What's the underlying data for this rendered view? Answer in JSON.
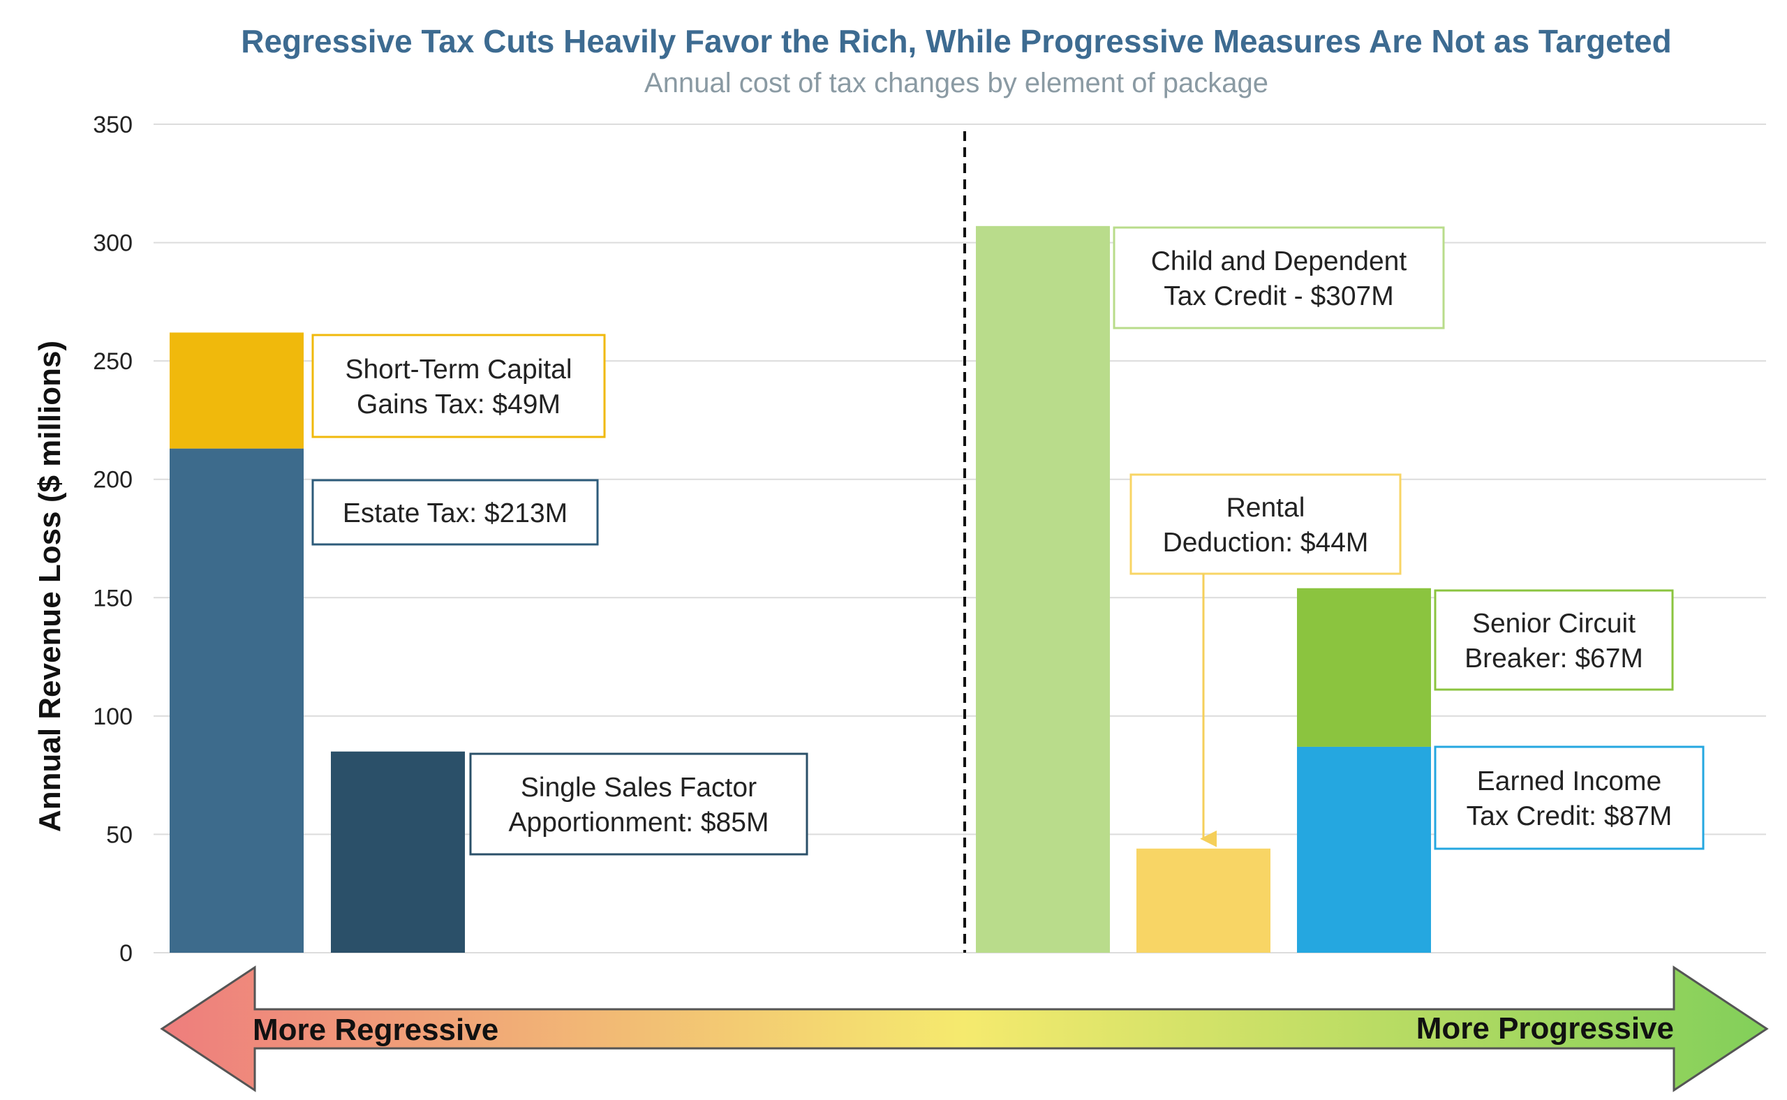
{
  "chart_data": {
    "type": "bar",
    "title": "Regressive Tax Cuts Heavily Favor the Rich, While Progressive Measures Are Not as Targeted",
    "subtitle": "Annual cost of tax changes by element of package",
    "ylabel": "Annual Revenue Loss ($ millions)",
    "ylim": [
      0,
      350
    ],
    "yticks": [
      0,
      50,
      100,
      150,
      200,
      250,
      300,
      350
    ],
    "grid": true,
    "bars": [
      {
        "segments": [
          {
            "value": 213,
            "label": [
              "Estate Tax: $213M"
            ],
            "color": "#3d6b8c"
          },
          {
            "value": 49,
            "label": [
              "Short-Term Capital",
              "Gains Tax: $49M"
            ],
            "color": "#f0b90c"
          }
        ]
      },
      {
        "segments": [
          {
            "value": 85,
            "label": [
              "Single Sales Factor",
              "Apportionment: $85M"
            ],
            "color": "#2b5069"
          }
        ]
      },
      {
        "segments": [
          {
            "value": 307,
            "label": [
              "Child and Dependent",
              "Tax Credit - $307M"
            ],
            "color": "#b9dc8b"
          }
        ]
      },
      {
        "segments": [
          {
            "value": 44,
            "label": [
              "Rental",
              "Deduction: $44M"
            ],
            "color": "#f8d565"
          }
        ]
      },
      {
        "segments": [
          {
            "value": 87,
            "label": [
              "Earned Income",
              "Tax Credit: $87M"
            ],
            "color": "#25a7e0"
          },
          {
            "value": 67,
            "label": [
              "Senior Circuit",
              "Breaker: $67M"
            ],
            "color": "#8bc43f"
          }
        ]
      }
    ],
    "divider": "dashed line between regressive and progressive groups",
    "arrow": {
      "left_label": "More Regressive",
      "right_label": "More Progressive",
      "left_color": "#ee7d7d",
      "mid_color": "#f5ea6e",
      "right_color": "#82cf5a"
    }
  }
}
